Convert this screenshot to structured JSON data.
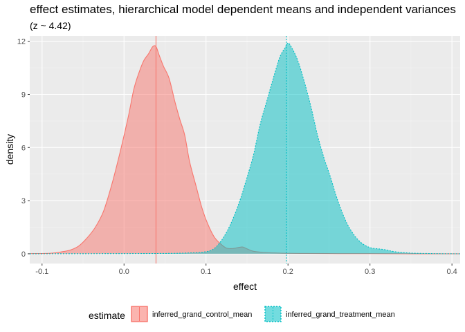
{
  "chart_data": {
    "type": "area",
    "title": "effect estimates, hierarchical model dependent means and independent variances",
    "subtitle": "(z ~  4.42)",
    "xlabel": "effect",
    "ylabel": "density",
    "xlim": [
      -0.115,
      0.41
    ],
    "ylim": [
      -0.55,
      12.3
    ],
    "xticks": [
      -0.1,
      0.0,
      0.1,
      0.2,
      0.3,
      0.4
    ],
    "xtick_labels": [
      "-0.1",
      "0.0",
      "0.1",
      "0.2",
      "0.3",
      "0.4"
    ],
    "yticks": [
      0,
      3,
      6,
      9,
      12
    ],
    "ytick_labels": [
      "0",
      "3",
      "6",
      "9",
      "12"
    ],
    "grid": true,
    "legend": {
      "position": "bottom",
      "title": "estimate",
      "entries": [
        "inferred_grand_control_mean",
        "inferred_grand_treatment_mean"
      ]
    },
    "series": [
      {
        "name": "inferred_grand_control_mean",
        "fill": "#F8766D",
        "line_style": "solid",
        "mean_line": 0.039,
        "x": [
          -0.115,
          -0.09,
          -0.075,
          -0.065,
          -0.055,
          -0.045,
          -0.035,
          -0.025,
          -0.015,
          -0.005,
          0.005,
          0.012,
          0.018,
          0.024,
          0.03,
          0.035,
          0.039,
          0.043,
          0.048,
          0.055,
          0.062,
          0.068,
          0.074,
          0.08,
          0.088,
          0.095,
          0.102,
          0.11,
          0.118,
          0.125,
          0.133,
          0.14,
          0.145,
          0.15,
          0.158,
          0.17,
          0.19,
          0.22,
          0.26,
          0.3,
          0.35,
          0.41
        ],
        "y": [
          0.01,
          0.03,
          0.12,
          0.22,
          0.45,
          0.9,
          1.5,
          2.4,
          3.9,
          5.7,
          7.7,
          9.3,
          10.2,
          10.9,
          11.3,
          11.7,
          11.7,
          11.2,
          10.6,
          9.9,
          8.6,
          7.6,
          6.7,
          5.2,
          3.8,
          2.6,
          1.7,
          0.95,
          0.55,
          0.32,
          0.3,
          0.36,
          0.38,
          0.28,
          0.14,
          0.08,
          0.04,
          0.02,
          0.01,
          0.01,
          0.0,
          0.0
        ]
      },
      {
        "name": "inferred_grand_treatment_mean",
        "fill": "#00BFC4",
        "line_style": "dotted",
        "mean_line": 0.198,
        "x": [
          -0.115,
          0.0,
          0.05,
          0.08,
          0.1,
          0.11,
          0.118,
          0.126,
          0.134,
          0.142,
          0.15,
          0.158,
          0.166,
          0.174,
          0.182,
          0.19,
          0.196,
          0.2,
          0.205,
          0.212,
          0.22,
          0.228,
          0.236,
          0.244,
          0.252,
          0.26,
          0.27,
          0.28,
          0.29,
          0.3,
          0.31,
          0.32,
          0.33,
          0.35,
          0.38,
          0.41
        ],
        "y": [
          0.0,
          0.01,
          0.02,
          0.05,
          0.12,
          0.3,
          0.7,
          1.3,
          2.1,
          3.1,
          4.3,
          5.6,
          7.3,
          8.6,
          9.9,
          11.1,
          11.6,
          11.9,
          11.6,
          10.9,
          9.7,
          8.3,
          6.7,
          5.4,
          4.3,
          3.1,
          1.9,
          1.1,
          0.6,
          0.35,
          0.28,
          0.22,
          0.12,
          0.04,
          0.01,
          0.0
        ]
      }
    ]
  }
}
